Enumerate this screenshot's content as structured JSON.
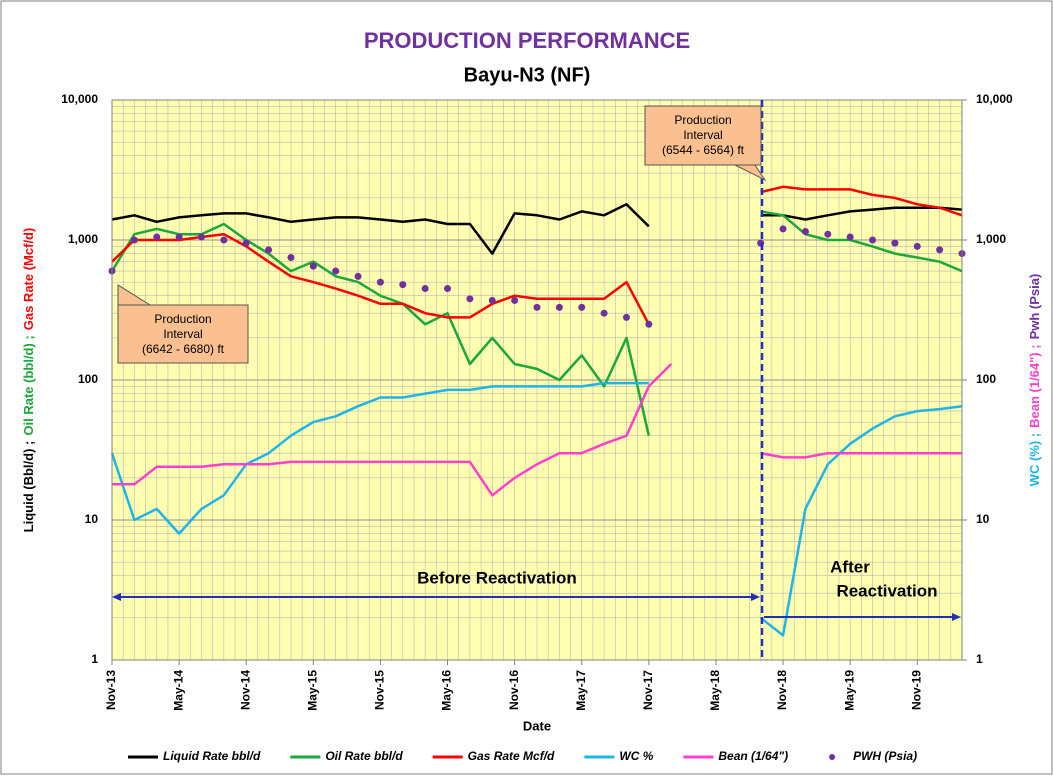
{
  "chart_data": {
    "type": "line",
    "title": "PRODUCTION PERFORMANCE",
    "subtitle": "Bayu-N3 (NF)",
    "xlabel": "Date",
    "ylabel": [
      {
        "text": "Liquid (Bbl/d) ;",
        "color": "#000000"
      },
      {
        "text": "Oil Rate (bbl/d) ;",
        "color": "#1aa838"
      },
      {
        "text": "Gas Rate (Mcf/d)",
        "color": "#ff0000"
      }
    ],
    "y2label": [
      {
        "text": "WC (%) ;",
        "color": "#1eb4ea"
      },
      {
        "text": "Bean (1/64\") ;",
        "color": "#ff3fce"
      },
      {
        "text": "Pwh (Psia)",
        "color": "#7030a0"
      }
    ],
    "annotations": [
      [
        "Production",
        "Interval",
        "(6642 - 6680) ft"
      ],
      [
        "Production",
        "Interval",
        "(6544 - 6564) ft"
      ],
      [
        "Before Reactivation"
      ],
      [
        "After",
        "Reactivation"
      ]
    ],
    "log_scale": true,
    "grid": true,
    "legend": "bottom",
    "xlim": [
      "Nov-13",
      "Mar-20"
    ],
    "xticks": [
      "Nov-13",
      "May-14",
      "Nov-14",
      "May-15",
      "Nov-15",
      "May-16",
      "Nov-16",
      "May-17",
      "Nov-17",
      "May-18",
      "Nov-18",
      "May-19",
      "Nov-19"
    ],
    "ylim": [
      1,
      10000
    ],
    "yticks": [
      1,
      10,
      100,
      {
        "value": 1000,
        "label": "1,000"
      },
      {
        "value": 10000,
        "label": "10,000"
      }
    ],
    "y2lim": [
      1,
      10000
    ],
    "y2ticks": [
      1,
      10,
      100,
      {
        "value": 1000,
        "label": "1,000"
      },
      {
        "value": 10000,
        "label": "10,000"
      }
    ],
    "x": [
      "Nov-13",
      "Jan-14",
      "Mar-14",
      "May-14",
      "Jul-14",
      "Sep-14",
      "Nov-14",
      "Jan-15",
      "Mar-15",
      "May-15",
      "Jul-15",
      "Sep-15",
      "Nov-15",
      "Jan-16",
      "Mar-16",
      "May-16",
      "Jul-16",
      "Sep-16",
      "Nov-16",
      "Jan-17",
      "Mar-17",
      "May-17",
      "Jul-17",
      "Sep-17",
      "Nov-17",
      "Jan-18",
      "Mar-18",
      "May-18",
      "Jul-18",
      "Sep-18",
      "Nov-18",
      "Jan-19",
      "Mar-19",
      "May-19",
      "Jul-19",
      "Sep-19",
      "Nov-19",
      "Jan-20",
      "Mar-20"
    ],
    "series": [
      {
        "name": "Liquid Rate bbl/d",
        "color": "#000000",
        "style": "line",
        "values": [
          1400,
          1500,
          1350,
          1450,
          1500,
          1550,
          1550,
          1450,
          1350,
          1400,
          1450,
          1450,
          1400,
          1350,
          1400,
          1300,
          1300,
          800,
          1550,
          1500,
          1400,
          1600,
          1500,
          1800,
          1250,
          null,
          null,
          null,
          null,
          1500,
          1500,
          1400,
          1500,
          1600,
          1650,
          1700,
          1700,
          1700,
          1650
        ]
      },
      {
        "name": "Oil Rate bbl/d",
        "color": "#1aa838",
        "style": "line",
        "values": [
          600,
          1100,
          1200,
          1100,
          1100,
          1300,
          1000,
          800,
          600,
          700,
          550,
          500,
          400,
          350,
          250,
          300,
          130,
          200,
          130,
          120,
          100,
          150,
          90,
          200,
          40,
          null,
          null,
          null,
          null,
          1600,
          1500,
          1100,
          1000,
          1000,
          900,
          800,
          750,
          700,
          600
        ]
      },
      {
        "name": "Gas Rate Mcf/d",
        "color": "#ff0000",
        "style": "line",
        "values": [
          700,
          1000,
          1000,
          1000,
          1050,
          1100,
          900,
          700,
          550,
          500,
          450,
          400,
          350,
          350,
          300,
          280,
          280,
          350,
          400,
          380,
          380,
          380,
          380,
          500,
          250,
          null,
          null,
          null,
          null,
          2200,
          2400,
          2300,
          2300,
          2300,
          2100,
          2000,
          1800,
          1700,
          1500
        ]
      },
      {
        "name": "WC %",
        "color": "#1eb4ea",
        "style": "line",
        "axis": "y2",
        "values": [
          30,
          10,
          12,
          8,
          12,
          15,
          25,
          30,
          40,
          50,
          55,
          65,
          75,
          75,
          80,
          85,
          85,
          90,
          90,
          90,
          90,
          90,
          95,
          95,
          95,
          null,
          null,
          null,
          null,
          2,
          1.5,
          12,
          25,
          35,
          45,
          55,
          60,
          62,
          65
        ]
      },
      {
        "name": "Bean (1/64\")",
        "color": "#ff3fce",
        "style": "line",
        "axis": "y2",
        "values": [
          18,
          18,
          24,
          24,
          24,
          25,
          25,
          25,
          26,
          26,
          26,
          26,
          26,
          26,
          26,
          26,
          26,
          15,
          20,
          25,
          30,
          30,
          35,
          40,
          90,
          130,
          null,
          null,
          null,
          30,
          28,
          28,
          30,
          30,
          30,
          30,
          30,
          30,
          30
        ]
      },
      {
        "name": "PWH (Psia)",
        "color": "#7030a0",
        "style": "dots",
        "axis": "y2",
        "values": [
          600,
          1000,
          1050,
          1050,
          1050,
          1000,
          950,
          850,
          750,
          650,
          600,
          550,
          500,
          480,
          450,
          450,
          380,
          370,
          370,
          330,
          330,
          330,
          300,
          280,
          250,
          null,
          null,
          null,
          null,
          950,
          1200,
          1150,
          1100,
          1050,
          1000,
          950,
          900,
          850,
          800
        ]
      }
    ]
  }
}
